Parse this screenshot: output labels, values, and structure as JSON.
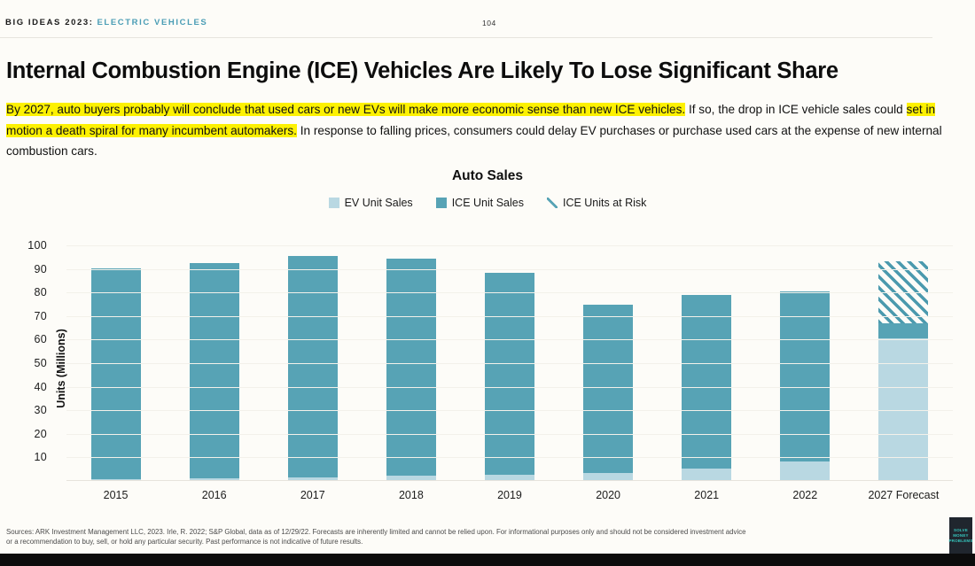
{
  "header": {
    "brand": "BIG IDEAS 2023:",
    "section": "ELECTRIC VEHICLES",
    "page": "104"
  },
  "title": "Internal Combustion Engine (ICE) Vehicles Are Likely To Lose Significant Share",
  "paragraph_segments": [
    {
      "text": "By 2027, auto buyers probably will conclude that used cars or new EVs will make more economic sense than new ICE vehicles.",
      "highlight": true
    },
    {
      "text": " If so, the drop in ICE vehicle sales could ",
      "highlight": false
    },
    {
      "text": "set in motion a death spiral for many incumbent automakers.",
      "highlight": true
    },
    {
      "text": " In response to falling prices, consumers could delay EV purchases or purchase used cars at the expense of new internal combustion cars.",
      "highlight": false
    }
  ],
  "chart_data": {
    "type": "bar",
    "stacked": true,
    "title": "Auto Sales",
    "ylabel": "Units (Millions)",
    "ylim": [
      0,
      100
    ],
    "yticks": [
      10,
      20,
      30,
      40,
      50,
      60,
      70,
      80,
      90,
      100
    ],
    "grid": "faint-horizontal",
    "legend_position": "top",
    "categories": [
      "2015",
      "2016",
      "2017",
      "2018",
      "2019",
      "2020",
      "2021",
      "2022",
      "2027 Forecast"
    ],
    "series": [
      {
        "name": "EV Unit Sales",
        "color": "#b9d8e2",
        "pattern": "solid",
        "values": [
          0.4,
          0.7,
          1.2,
          2,
          2.2,
          3,
          5,
          8,
          60
        ]
      },
      {
        "name": "ICE Unit Sales",
        "color": "#57a3b5",
        "pattern": "solid",
        "values": [
          89.6,
          91.3,
          93.8,
          92,
          85.8,
          71.5,
          73.5,
          72,
          6.5
        ]
      },
      {
        "name": "ICE Units at Risk",
        "color": "#4b9aae",
        "pattern": "diagonal-hatch",
        "values": [
          0,
          0,
          0,
          0,
          0,
          0,
          0,
          0,
          26.5
        ]
      }
    ],
    "totals": [
      90,
      92,
      95,
      94,
      88,
      74.5,
      78.5,
      80,
      93
    ]
  },
  "footer": {
    "line1": "Sources: ARK Investment Management LLC, 2023. Irle, R. 2022; S&P Global, data as of 12/29/22. Forecasts are inherently limited and cannot be relied upon. For informational purposes only and should not be considered investment advice",
    "line2": "or a recommendation to buy, sell, or hold any particular security. Past performance is not indicative of future results."
  },
  "badge": {
    "lines": [
      "SOLVE",
      "MONEY",
      "PROBLEMS"
    ]
  },
  "colors": {
    "background": "#fdfcf8",
    "accent_teal": "#4a9db5",
    "ev_fill": "#b9d8e2",
    "ice_fill": "#57a3b5",
    "risk_hatch": "#4b9aae",
    "highlight_yellow": "#fdf102",
    "bottom_bar": "#0c0c0c"
  }
}
